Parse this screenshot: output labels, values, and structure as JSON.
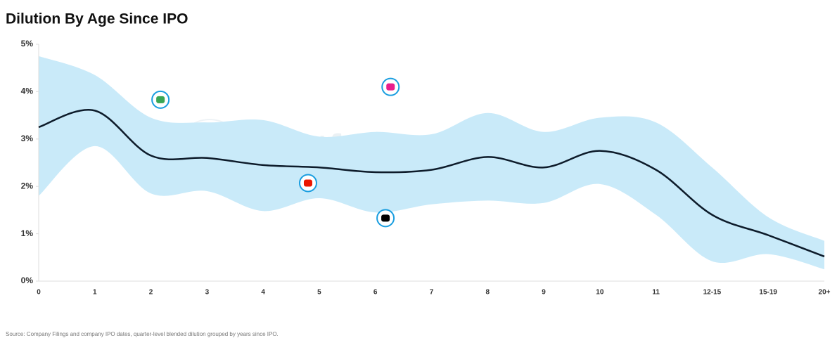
{
  "chart_data": {
    "type": "line",
    "title": "Dilution By Age Since IPO",
    "watermark": "Platform Aeronaut",
    "source": "Source: Company Filings and company IPO dates, quarter-level blended dilution grouped by years since IPO.",
    "categories": [
      "0",
      "1",
      "2",
      "3",
      "4",
      "5",
      "6",
      "7",
      "8",
      "9",
      "10",
      "11",
      "12-15",
      "15-19",
      "20+"
    ],
    "values": [
      3.25,
      3.6,
      2.65,
      2.6,
      2.45,
      2.4,
      2.3,
      2.35,
      2.62,
      2.4,
      2.75,
      2.35,
      1.4,
      0.97,
      0.52
    ],
    "color": "#0d1b2a",
    "band": {
      "upper": [
        4.75,
        4.35,
        3.45,
        3.35,
        3.4,
        3.05,
        3.15,
        3.1,
        3.55,
        3.15,
        3.45,
        3.35,
        2.4,
        1.35,
        0.85
      ],
      "lower": [
        1.8,
        2.85,
        1.85,
        1.9,
        1.48,
        1.75,
        1.45,
        1.62,
        1.7,
        1.65,
        2.05,
        1.4,
        0.42,
        0.57,
        0.25
      ],
      "color": "#c9eaf9"
    },
    "points": {
      "x": [
        2.17,
        6.27,
        4.8,
        6.18
      ],
      "values": [
        3.83,
        4.1,
        2.07,
        1.33
      ],
      "colors": [
        "#3aa655",
        "#e91e8c",
        "#eb1700",
        "#000000"
      ],
      "ring_color": "#1a9ee0"
    },
    "xlim": [
      0,
      14
    ],
    "ylim": [
      0,
      5
    ],
    "yticks": [
      {
        "value": 0,
        "label": "0%"
      },
      {
        "value": 1,
        "label": "1%"
      },
      {
        "value": 2,
        "label": "2%"
      },
      {
        "value": 3,
        "label": "3%"
      },
      {
        "value": 4,
        "label": "4%"
      },
      {
        "value": 5,
        "label": "5%"
      }
    ]
  }
}
